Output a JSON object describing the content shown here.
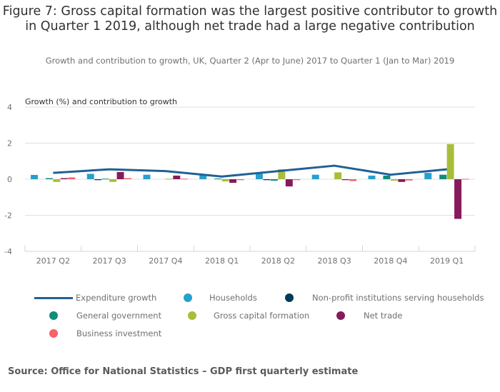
{
  "title": "Figure 7: Gross capital formation was the largest positive contributor to growth in Quarter 1 2019, although net trade had a large negative contribution",
  "subtitle": "Growth and contribution to growth, UK, Quarter 2 (Apr to June) 2017 to Quarter 1 (Jan to Mar) 2019",
  "source": "Source: Office for National Statistics – GDP first quarterly estimate",
  "chart_data": {
    "type": "bar",
    "title": "Figure 7: Gross capital formation was the largest positive contributor to growth in Quarter 1 2019, although net trade had a large negative contribution",
    "subtitle": "Growth and contribution to growth, UK, Quarter 2 (Apr to June) 2017 to Quarter 1 (Jan to Mar) 2019",
    "xlabel": "",
    "ylabel": "Growth (%) and contribution to growth",
    "ylim": [
      -4,
      4
    ],
    "yticks": [
      4,
      2,
      0,
      -2,
      -4
    ],
    "grid": true,
    "legend_position": "bottom",
    "categories": [
      "2017 Q2",
      "2017 Q3",
      "2017 Q4",
      "2018 Q1",
      "2018 Q2",
      "2018 Q3",
      "2018 Q4",
      "2019 Q1"
    ],
    "line_series": {
      "name": "Expenditure growth",
      "color": "#206095",
      "values": [
        0.35,
        0.55,
        0.45,
        0.15,
        0.45,
        0.75,
        0.25,
        0.55
      ]
    },
    "series": [
      {
        "name": "Households",
        "color": "#27a0cc",
        "values": [
          0.24,
          0.3,
          0.25,
          0.25,
          0.3,
          0.25,
          0.2,
          0.35
        ]
      },
      {
        "name": "Non-profit institutions serving households",
        "color": "#003c57",
        "values": [
          0.0,
          -0.05,
          0.0,
          0.0,
          -0.05,
          0.0,
          0.0,
          0.0
        ]
      },
      {
        "name": "General government",
        "color": "#118c7b",
        "values": [
          0.06,
          0.03,
          0.0,
          0.04,
          -0.08,
          0.0,
          0.2,
          0.25
        ]
      },
      {
        "name": "Gross capital formation",
        "color": "#a8bd3a",
        "values": [
          -0.15,
          -0.15,
          0.03,
          -0.12,
          0.55,
          0.38,
          -0.08,
          1.95
        ]
      },
      {
        "name": "Net trade",
        "color": "#871a5b",
        "values": [
          0.06,
          0.4,
          0.2,
          -0.2,
          -0.4,
          -0.05,
          -0.15,
          -2.2
        ]
      },
      {
        "name": "Business investment",
        "color": "#f66068",
        "values": [
          0.1,
          0.06,
          0.03,
          -0.05,
          -0.05,
          -0.1,
          -0.07,
          0.02
        ]
      }
    ]
  },
  "legend": [
    {
      "label": "Expenditure growth",
      "type": "line",
      "color": "#206095"
    },
    {
      "label": "Households",
      "type": "dot",
      "color": "#27a0cc"
    },
    {
      "label": "Non-profit institutions serving households",
      "type": "dot",
      "color": "#003c57"
    },
    {
      "label": "General government",
      "type": "dot",
      "color": "#118c7b"
    },
    {
      "label": "Gross capital formation",
      "type": "dot",
      "color": "#a8bd3a"
    },
    {
      "label": "Net trade",
      "type": "dot",
      "color": "#871a5b"
    },
    {
      "label": "Business investment",
      "type": "dot",
      "color": "#f66068"
    }
  ]
}
